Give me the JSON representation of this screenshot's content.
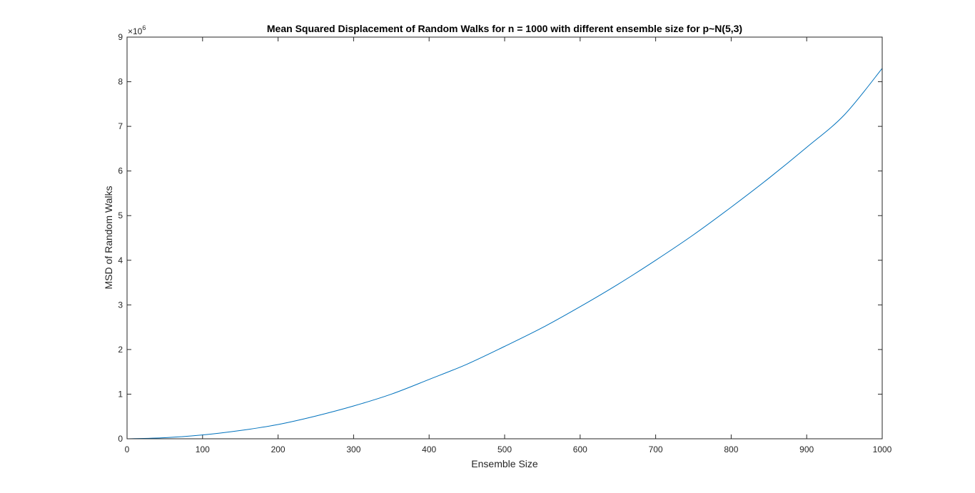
{
  "chart_data": {
    "type": "line",
    "title": "Mean Squared Displacement of Random Walks for n = 1000 with different ensemble size for p~N(5,3)",
    "xlabel": "Ensemble Size",
    "ylabel": "MSD of Random Walks",
    "xlim": [
      0,
      1000
    ],
    "ylim": [
      0,
      9000000
    ],
    "y_multiplier_base": "×10",
    "y_multiplier_exp": "6",
    "x_ticks": [
      0,
      100,
      200,
      300,
      400,
      500,
      600,
      700,
      800,
      900,
      1000
    ],
    "y_ticks": [
      0,
      1,
      2,
      3,
      4,
      5,
      6,
      7,
      8,
      9
    ],
    "x_tick_labels": [
      "0",
      "100",
      "200",
      "300",
      "400",
      "500",
      "600",
      "700",
      "800",
      "900",
      "1000"
    ],
    "y_tick_labels": [
      "0",
      "1",
      "2",
      "3",
      "4",
      "5",
      "6",
      "7",
      "8",
      "9"
    ],
    "grid": false,
    "line_color": "#0072BD",
    "series": [
      {
        "x": [
          0,
          50,
          100,
          150,
          200,
          250,
          300,
          350,
          400,
          450,
          500,
          550,
          600,
          650,
          700,
          750,
          800,
          850,
          900,
          950,
          1000
        ],
        "values": [
          0,
          25000,
          85000,
          185000,
          320000,
          510000,
          735000,
          1000000,
          1330000,
          1670000,
          2070000,
          2490000,
          2960000,
          3460000,
          4000000,
          4570000,
          5190000,
          5840000,
          6530000,
          7260000,
          8300000
        ]
      }
    ]
  }
}
